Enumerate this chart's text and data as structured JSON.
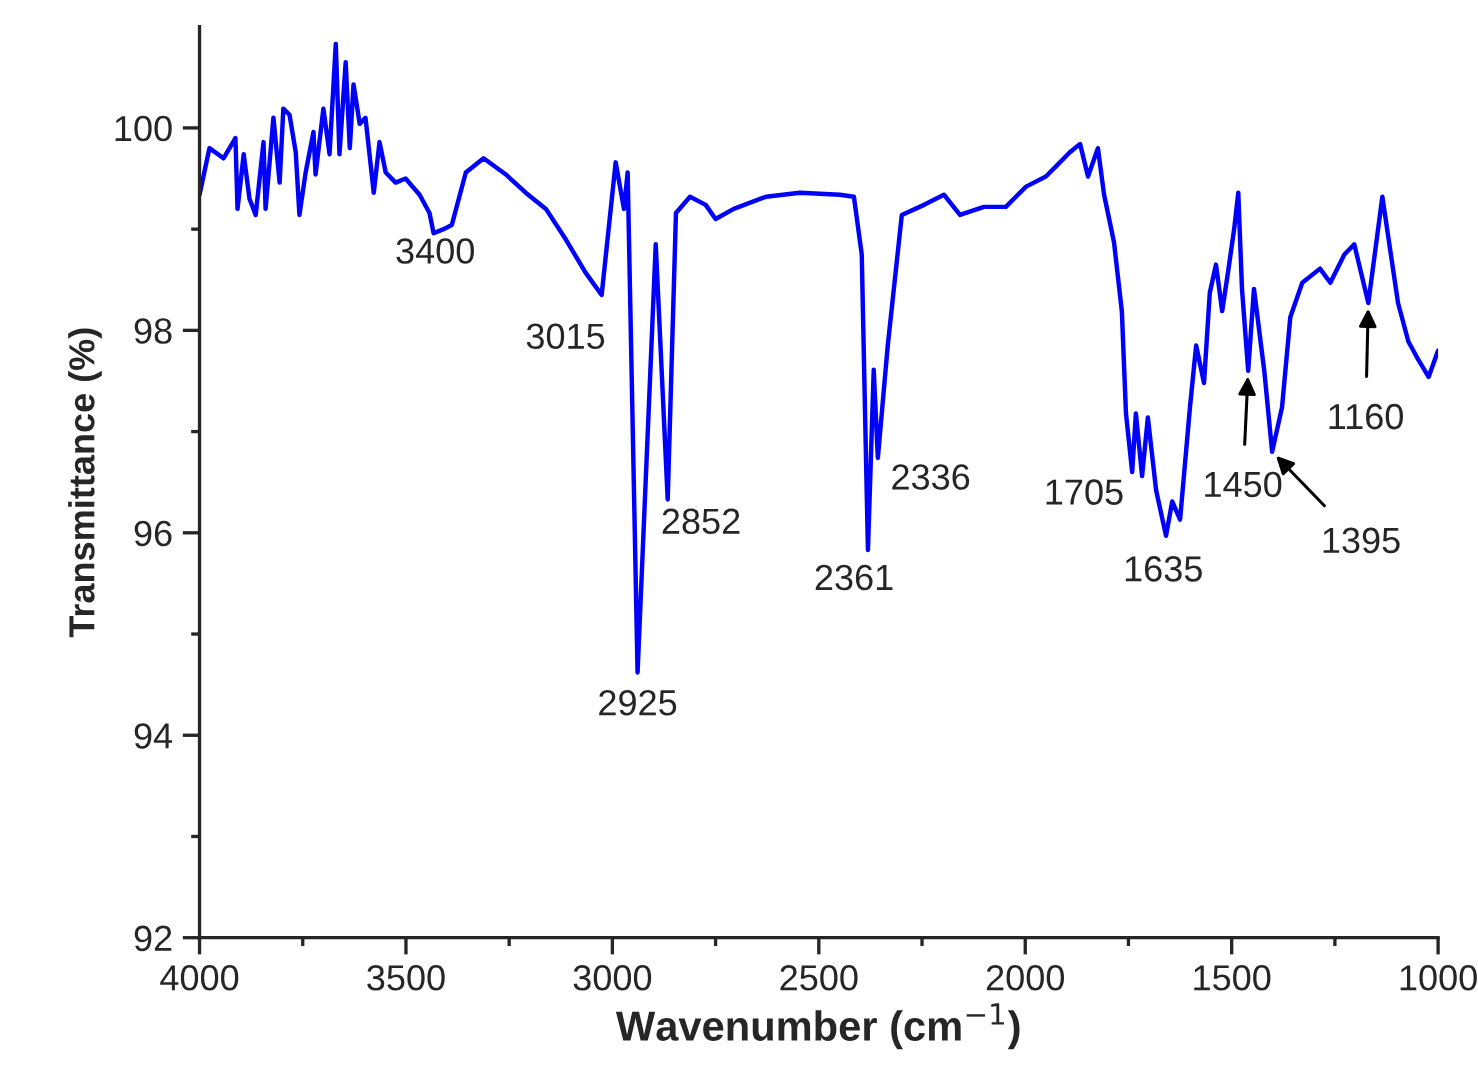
{
  "chart_data": {
    "type": "line",
    "xlabel": "Wavenumber (cm$^{−1}$)",
    "ylabel": "Transmittance (%)",
    "xlim": [
      4000,
      1000
    ],
    "ylim": [
      92,
      101
    ],
    "xticks": [
      4000,
      {
        "value": 3750,
        "label": null
      },
      3500,
      {
        "value": 3250,
        "label": null
      },
      3000,
      {
        "value": 2750,
        "label": null
      },
      2500,
      {
        "value": 2250,
        "label": null
      },
      2000,
      {
        "value": 1750,
        "label": null
      },
      1500,
      {
        "value": 1250,
        "label": null
      },
      1000
    ],
    "yticks": [
      92,
      {
        "value": 93,
        "label": null
      },
      94,
      {
        "value": 95,
        "label": null
      },
      96,
      {
        "value": 97,
        "label": null
      },
      98,
      {
        "value": 99,
        "label": null
      },
      100
    ],
    "grid": false,
    "legend": false,
    "marker": "none",
    "line_style": "solid",
    "series": [
      {
        "color": "#0000ff",
        "x": [
          4000,
          3976,
          3942,
          3913,
          3908,
          3893,
          3879,
          3864,
          3845,
          3840,
          3821,
          3806,
          3797,
          3782,
          3767,
          3758,
          3743,
          3724,
          3719,
          3700,
          3685,
          3670,
          3661,
          3646,
          3636,
          3627,
          3612,
          3598,
          3578,
          3564,
          3549,
          3525,
          3501,
          3467,
          3443,
          3433,
          3409,
          3389,
          3355,
          3312,
          3258,
          3210,
          3161,
          3113,
          3065,
          3026,
          2992,
          2972,
          2963,
          2939,
          2895,
          2866,
          2846,
          2812,
          2774,
          2750,
          2706,
          2628,
          2546,
          2449,
          2415,
          2396,
          2381,
          2367,
          2357,
          2333,
          2299,
          2245,
          2197,
          2158,
          2100,
          2047,
          1998,
          1950,
          1916,
          1892,
          1867,
          1848,
          1824,
          1809,
          1785,
          1766,
          1756,
          1741,
          1732,
          1717,
          1703,
          1683,
          1659,
          1644,
          1625,
          1601,
          1586,
          1567,
          1553,
          1538,
          1523,
          1509,
          1494,
          1484,
          1475,
          1460,
          1446,
          1421,
          1402,
          1378,
          1358,
          1329,
          1286,
          1261,
          1227,
          1203,
          1169,
          1135,
          1097,
          1072,
          1048,
          1023,
          1000
        ],
        "values": [
          99.34,
          99.8,
          99.7,
          99.9,
          99.2,
          99.74,
          99.3,
          99.14,
          99.86,
          99.2,
          100.1,
          99.46,
          100.19,
          100.13,
          99.76,
          99.14,
          99.56,
          99.96,
          99.54,
          100.19,
          99.74,
          100.83,
          99.74,
          100.65,
          99.8,
          100.43,
          100.04,
          100.1,
          99.36,
          99.86,
          99.56,
          99.46,
          99.5,
          99.34,
          99.16,
          98.96,
          99.0,
          99.04,
          99.56,
          99.7,
          99.54,
          99.36,
          99.2,
          98.9,
          98.57,
          98.35,
          99.66,
          99.2,
          99.56,
          94.62,
          98.85,
          96.33,
          99.16,
          99.32,
          99.24,
          99.1,
          99.2,
          99.32,
          99.36,
          99.34,
          99.32,
          98.75,
          95.83,
          97.61,
          96.74,
          97.85,
          99.14,
          99.24,
          99.34,
          99.14,
          99.22,
          99.22,
          99.42,
          99.52,
          99.66,
          99.76,
          99.84,
          99.52,
          99.8,
          99.34,
          98.87,
          98.19,
          97.18,
          96.6,
          97.18,
          96.56,
          97.14,
          96.42,
          95.97,
          96.31,
          96.13,
          97.24,
          97.85,
          97.48,
          98.37,
          98.65,
          98.19,
          98.57,
          99.0,
          99.36,
          98.41,
          97.6,
          98.41,
          97.6,
          96.8,
          97.24,
          98.13,
          98.47,
          98.61,
          98.47,
          98.75,
          98.85,
          98.27,
          99.32,
          98.27,
          97.89,
          97.71,
          97.54,
          97.8
        ]
      }
    ],
    "annotations": [
      {
        "text": "3400",
        "x": 3409,
        "y": 99.0
      },
      {
        "text": "3015",
        "x": 3026,
        "y": 98.35
      },
      {
        "text": "2925",
        "x": 2939,
        "y": 94.62
      },
      {
        "text": "2852",
        "x": 2866,
        "y": 96.33
      },
      {
        "text": "2361",
        "x": 2381,
        "y": 95.83
      },
      {
        "text": "2336",
        "x": 2357,
        "y": 96.74
      },
      {
        "text": "1705",
        "x": 1703,
        "y": 97.14
      },
      {
        "text": "1635",
        "x": 1659,
        "y": 95.97
      },
      {
        "text": "1450",
        "x": 1460,
        "y": 97.6
      },
      {
        "text": "1395",
        "x": 1402,
        "y": 96.8
      },
      {
        "text": "1160",
        "x": 1169,
        "y": 98.27
      }
    ]
  }
}
